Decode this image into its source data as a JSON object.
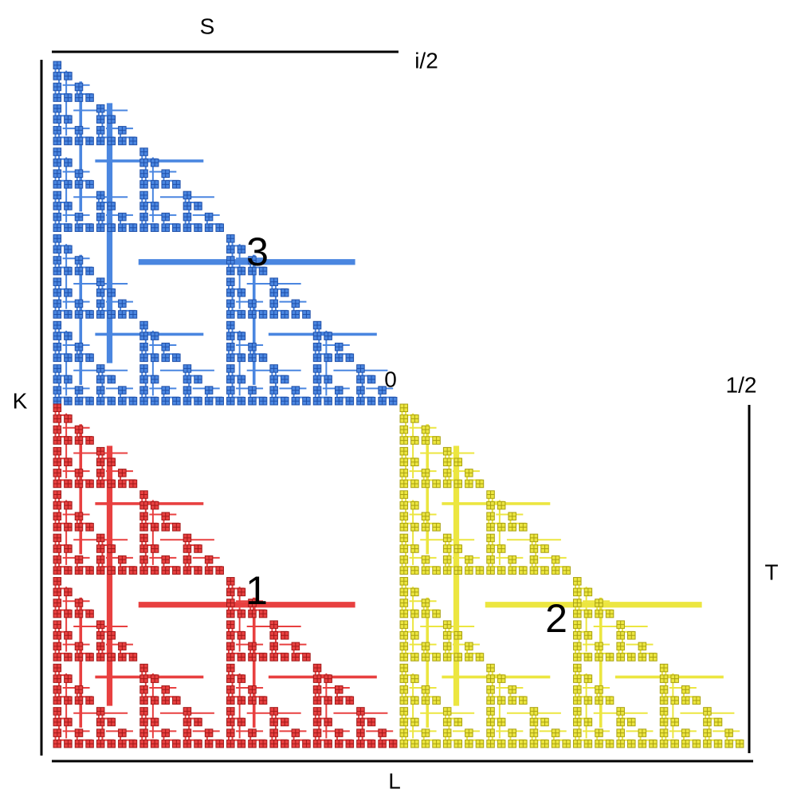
{
  "labels": {
    "top": "S",
    "top_right": "i/2",
    "left": "K",
    "origin": "0",
    "right_top": "1/2",
    "right": "T",
    "bottom": "L",
    "region_blue": "3",
    "region_red": "1",
    "region_yellow": "2"
  }
}
